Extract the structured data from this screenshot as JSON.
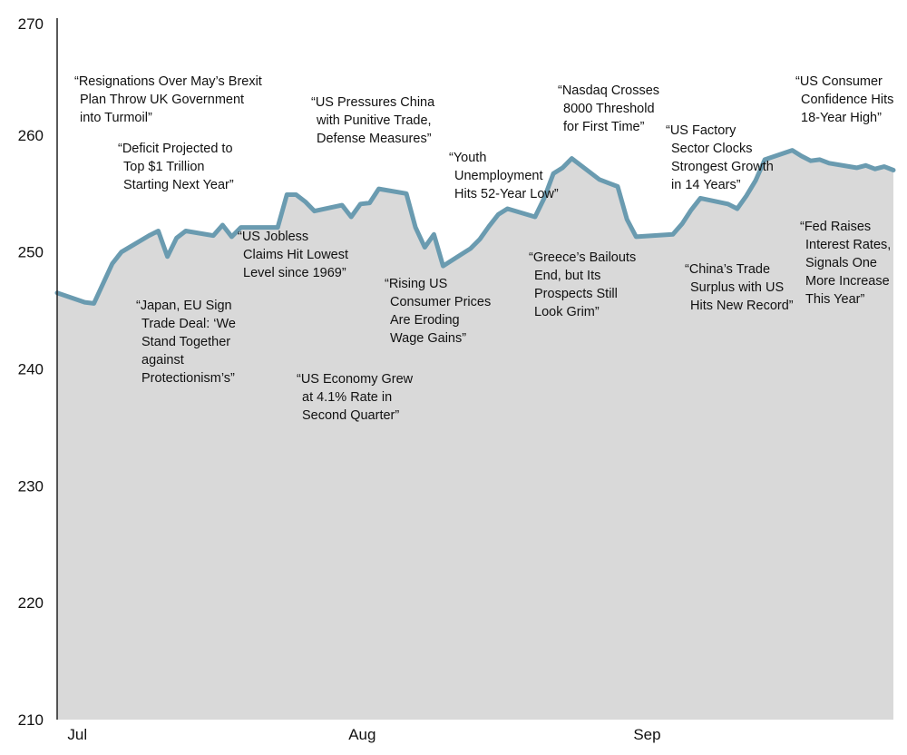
{
  "chart_data": {
    "type": "area",
    "title": "",
    "xlabel": "",
    "ylabel": "",
    "ylim": [
      210,
      270
    ],
    "yticks": [
      210,
      220,
      230,
      240,
      250,
      260,
      270
    ],
    "xticks": [
      "Jul",
      "Aug",
      "Sep"
    ],
    "x": [
      "2018-06-29",
      "2018-07-02",
      "2018-07-03",
      "2018-07-05",
      "2018-07-06",
      "2018-07-09",
      "2018-07-10",
      "2018-07-11",
      "2018-07-12",
      "2018-07-13",
      "2018-07-16",
      "2018-07-17",
      "2018-07-18",
      "2018-07-19",
      "2018-07-20",
      "2018-07-23",
      "2018-07-24",
      "2018-07-25",
      "2018-07-26",
      "2018-07-27",
      "2018-07-30",
      "2018-07-31",
      "2018-08-01",
      "2018-08-02",
      "2018-08-03",
      "2018-08-06",
      "2018-08-07",
      "2018-08-08",
      "2018-08-09",
      "2018-08-10",
      "2018-08-13",
      "2018-08-14",
      "2018-08-15",
      "2018-08-16",
      "2018-08-17",
      "2018-08-20",
      "2018-08-21",
      "2018-08-22",
      "2018-08-23",
      "2018-08-24",
      "2018-08-27",
      "2018-08-28",
      "2018-08-29",
      "2018-08-30",
      "2018-08-31",
      "2018-09-04",
      "2018-09-05",
      "2018-09-06",
      "2018-09-07",
      "2018-09-10",
      "2018-09-11",
      "2018-09-12",
      "2018-09-13",
      "2018-09-14",
      "2018-09-17",
      "2018-09-18",
      "2018-09-19",
      "2018-09-20",
      "2018-09-21",
      "2018-09-24",
      "2018-09-25",
      "2018-09-26",
      "2018-09-27",
      "2018-09-28"
    ],
    "series": [
      {
        "color": "#6a9bb0",
        "fill": "#d9d9d9",
        "values": [
          246.5,
          245.7,
          245.6,
          249.0,
          250.0,
          251.4,
          251.8,
          249.6,
          251.2,
          251.8,
          251.4,
          252.3,
          251.3,
          252.1,
          252.1,
          252.1,
          254.9,
          254.9,
          254.3,
          253.5,
          254.0,
          253.0,
          254.1,
          254.2,
          255.4,
          255.0,
          252.1,
          250.4,
          251.5,
          248.8,
          250.3,
          251.1,
          252.2,
          253.2,
          253.7,
          253.0,
          254.6,
          256.7,
          257.2,
          258.0,
          256.2,
          255.9,
          255.6,
          252.8,
          251.3,
          251.5,
          252.4,
          253.6,
          254.6,
          254.1,
          253.7,
          254.8,
          256.1,
          257.9,
          258.7,
          258.2,
          257.8,
          257.9,
          257.6,
          257.2,
          257.4,
          257.1,
          257.3,
          257.0
        ]
      }
    ],
    "annotations": [
      {
        "lines": [
          "“Resignations Over May’s Brexit",
          "Plan Throw UK Government",
          "into Turmoil”"
        ]
      },
      {
        "lines": [
          "“Deficit Projected to",
          "Top $1 Trillion",
          "Starting Next Year”"
        ]
      },
      {
        "lines": [
          "“Japan, EU Sign",
          "Trade Deal: ‘We",
          "Stand Together",
          "against",
          "Protectionism’s”"
        ]
      },
      {
        "lines": [
          "“US Jobless",
          "Claims Hit Lowest",
          "Level since 1969”"
        ]
      },
      {
        "lines": [
          "“US Pressures China",
          "with Punitive Trade,",
          "Defense Measures”"
        ]
      },
      {
        "lines": [
          "“US Economy Grew",
          "at 4.1% Rate in",
          "Second Quarter”"
        ]
      },
      {
        "lines": [
          "“Rising US",
          "Consumer Prices",
          "Are Eroding",
          "Wage Gains”"
        ]
      },
      {
        "lines": [
          "“Youth",
          "Unemployment",
          "Hits 52-Year Low”"
        ]
      },
      {
        "lines": [
          "“Nasdaq Crosses",
          "8000 Threshold",
          "for First Time”"
        ]
      },
      {
        "lines": [
          "“Greece’s Bailouts",
          "End, but Its",
          "Prospects Still",
          "Look Grim”"
        ]
      },
      {
        "lines": [
          "“US Factory",
          "Sector Clocks",
          "Strongest Growth",
          "in 14 Years”"
        ]
      },
      {
        "lines": [
          "“China’s Trade",
          "Surplus with US",
          "Hits New Record”"
        ]
      },
      {
        "lines": [
          "“US Consumer",
          "Confidence Hits",
          "18-Year High”"
        ]
      },
      {
        "lines": [
          "“Fed Raises",
          "Interest Rates,",
          "Signals One",
          "More Increase",
          "This Year”"
        ]
      }
    ]
  }
}
